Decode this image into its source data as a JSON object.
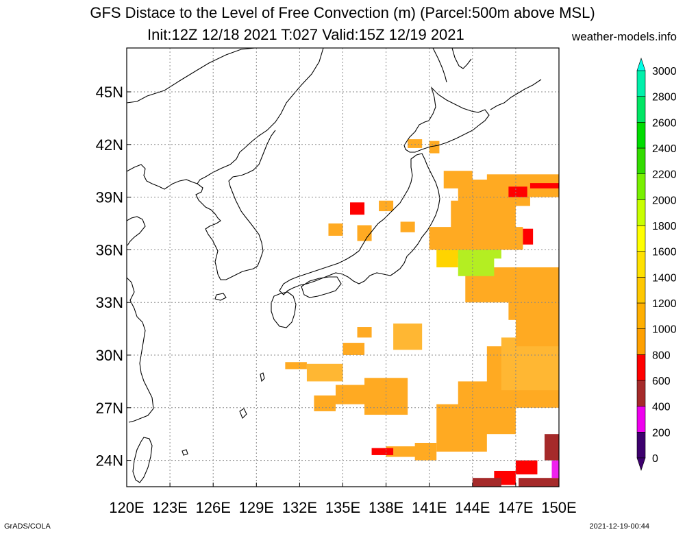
{
  "header": {
    "title_line1": "GFS Distace to the Level of Free Convection (m) (Parcel:500m above MSL)",
    "title_line2": "Init:12Z 12/18 2021 T:027 Valid:15Z 12/19 2021",
    "site": "weather-models.info"
  },
  "footer": {
    "left": "GrADS/COLA",
    "right": "2021-12-19-00:44"
  },
  "map": {
    "lon_range": [
      120,
      150
    ],
    "lat_range": [
      22.5,
      47.5
    ],
    "lon_labels": [
      "120E",
      "123E",
      "126E",
      "129E",
      "132E",
      "135E",
      "138E",
      "141E",
      "144E",
      "147E",
      "150E"
    ],
    "lat_labels": [
      {
        "lat": 24,
        "label": "24N"
      },
      {
        "lat": 27,
        "label": "27N"
      },
      {
        "lat": 30,
        "label": "30N"
      },
      {
        "lat": 33,
        "label": "33N"
      },
      {
        "lat": 36,
        "label": "36N"
      },
      {
        "lat": 39,
        "label": "39N"
      },
      {
        "lat": 42,
        "label": "42N"
      },
      {
        "lat": 45,
        "label": "45N"
      }
    ]
  },
  "legend": {
    "labels": [
      "0",
      "200",
      "400",
      "600",
      "800",
      "1000",
      "1200",
      "1400",
      "1600",
      "1800",
      "2000",
      "2200",
      "2400",
      "2600",
      "2800",
      "3000"
    ],
    "colors": [
      "#3d006e",
      "#ee00ee",
      "#a52a2a",
      "#ff0000",
      "#ffa000",
      "#ffaf00",
      "#ffc800",
      "#ffe100",
      "#ffff00",
      "#c8ff00",
      "#78f000",
      "#32dc00",
      "#00dc00",
      "#00e664",
      "#00f0aa",
      "#00ffe6"
    ]
  },
  "colors": {
    "orange": "#ffaa22",
    "light_orange": "#ffb733",
    "yellow": "#ffd400",
    "green_yellow": "#b4ee22",
    "red": "#ff0000",
    "brown": "#a52a2a",
    "magenta": "#ee22ee"
  }
}
